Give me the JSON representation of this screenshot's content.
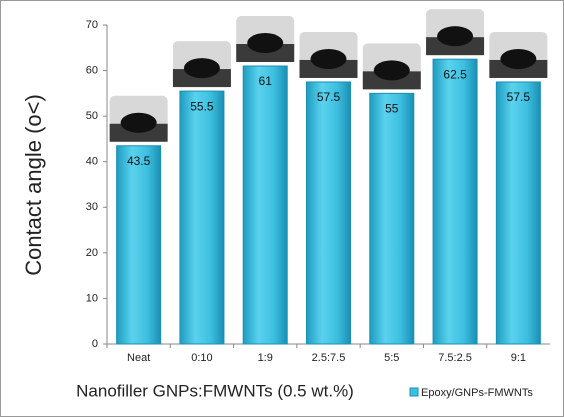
{
  "chart_data": {
    "type": "bar",
    "categories": [
      "Neat",
      "0:10",
      "1:9",
      "2.5:7.5",
      "5:5",
      "7.5:2.5",
      "9:1"
    ],
    "series": [
      {
        "name": "Epoxy/GNPs-FMWNTs",
        "color": "#3dbfe0",
        "values": [
          43.5,
          55.5,
          61,
          57.5,
          55,
          62.5,
          57.5
        ]
      }
    ],
    "xlabel": "Nanofiller GNPs:FMWNTs (0.5 wt.%)",
    "ylabel": "Contact angle (o<)",
    "ylim": [
      0,
      70
    ],
    "yticks": [
      0,
      10,
      20,
      30,
      40,
      50,
      60,
      70
    ],
    "legend": "bottom-right"
  }
}
